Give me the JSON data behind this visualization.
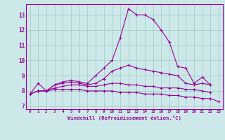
{
  "xlabel": "Windchill (Refroidissement éolien,°C)",
  "bg_color": "#cce8e8",
  "line_color": "#990099",
  "grid_color": "#aacccc",
  "xlim": [
    -0.5,
    23.5
  ],
  "ylim": [
    6.8,
    13.7
  ],
  "xticks": [
    0,
    1,
    2,
    3,
    4,
    5,
    6,
    7,
    8,
    9,
    10,
    11,
    12,
    13,
    14,
    15,
    16,
    17,
    18,
    19,
    20,
    21,
    22,
    23
  ],
  "yticks": [
    7,
    8,
    9,
    10,
    11,
    12,
    13
  ],
  "series": [
    [
      7.8,
      8.5,
      8.0,
      8.4,
      8.6,
      8.7,
      8.6,
      8.5,
      9.0,
      9.5,
      10.0,
      11.5,
      13.4,
      13.0,
      13.0,
      12.7,
      12.0,
      11.2,
      9.6,
      9.5,
      8.5,
      8.9,
      8.4,
      null
    ],
    [
      7.8,
      8.0,
      8.0,
      8.4,
      8.5,
      8.6,
      8.5,
      8.4,
      8.5,
      8.8,
      9.3,
      9.5,
      9.7,
      9.5,
      9.4,
      9.3,
      9.2,
      9.1,
      9.0,
      8.5,
      8.4,
      8.5,
      8.4,
      null
    ],
    [
      7.8,
      8.0,
      8.0,
      8.2,
      8.3,
      8.4,
      8.4,
      8.3,
      8.3,
      8.4,
      8.5,
      8.5,
      8.4,
      8.4,
      8.3,
      8.3,
      8.2,
      8.2,
      8.2,
      8.1,
      8.1,
      8.0,
      7.9,
      null
    ],
    [
      7.8,
      8.0,
      8.0,
      8.1,
      8.1,
      8.1,
      8.1,
      8.0,
      8.0,
      8.0,
      8.0,
      7.9,
      7.9,
      7.9,
      7.8,
      7.8,
      7.8,
      7.7,
      7.7,
      7.6,
      7.6,
      7.5,
      7.5,
      7.3
    ]
  ]
}
